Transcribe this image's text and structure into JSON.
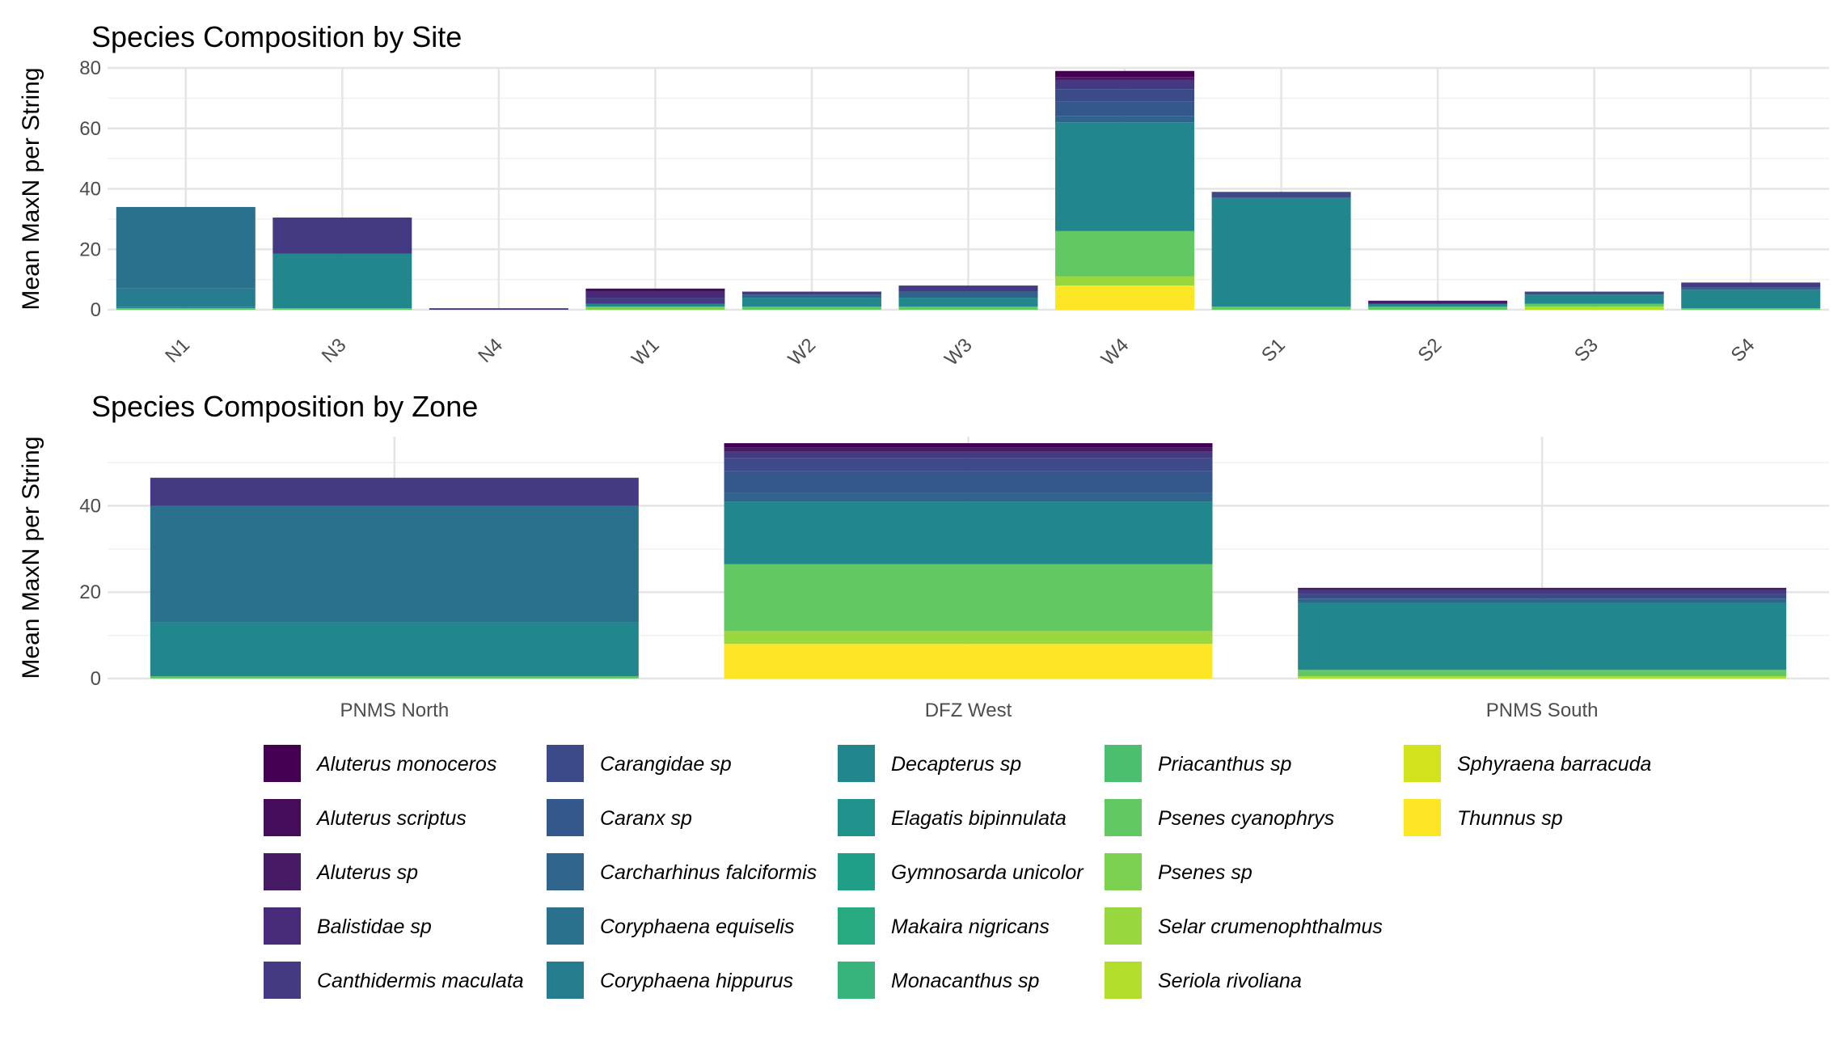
{
  "species": [
    {
      "name": "Aluterus monoceros",
      "color": "#440154"
    },
    {
      "name": "Aluterus scriptus",
      "color": "#450c5b"
    },
    {
      "name": "Aluterus sp",
      "color": "#471a66"
    },
    {
      "name": "Balistidae sp",
      "color": "#472a7a"
    },
    {
      "name": "Canthidermis maculata",
      "color": "#433a83"
    },
    {
      "name": "Carangidae sp",
      "color": "#3d4a89"
    },
    {
      "name": "Caranx sp",
      "color": "#35588c"
    },
    {
      "name": "Carcharhinus falciformis",
      "color": "#2f658d"
    },
    {
      "name": "Coryphaena equiselis",
      "color": "#2a718e"
    },
    {
      "name": "Coryphaena hippurus",
      "color": "#257c8e"
    },
    {
      "name": "Decapterus sp",
      "color": "#21878d"
    },
    {
      "name": "Elagatis bipinnulata",
      "color": "#1f938b"
    },
    {
      "name": "Gymnosarda unicolor",
      "color": "#1f9e88"
    },
    {
      "name": "Makaira nigricans",
      "color": "#27a982"
    },
    {
      "name": "Monacanthus sp",
      "color": "#37b47b"
    },
    {
      "name": "Priacanthus sp",
      "color": "#4bbf6f"
    },
    {
      "name": "Psenes cyanophrys",
      "color": "#62c862"
    },
    {
      "name": "Psenes sp",
      "color": "#7cd150"
    },
    {
      "name": "Selar crumenophthalmus",
      "color": "#98d83e"
    },
    {
      "name": "Seriola rivoliana",
      "color": "#b4de2c"
    },
    {
      "name": "Sphyraena barracuda",
      "color": "#d2e21b"
    },
    {
      "name": "Thunnus sp",
      "color": "#fde725"
    }
  ],
  "chart_data": [
    {
      "type": "bar",
      "stacked": true,
      "title": "Species Composition by Site",
      "ylabel": "Mean MaxN per String",
      "xlabel": "",
      "ylim": [
        0,
        80
      ],
      "yticks": [
        0,
        20,
        40,
        60,
        80
      ],
      "categories": [
        "N1",
        "N3",
        "N4",
        "W1",
        "W2",
        "W3",
        "W4",
        "S1",
        "S2",
        "S3",
        "S4"
      ],
      "grid": true,
      "legend": "bottom",
      "stacks": [
        {
          "category": "N1",
          "segments": [
            {
              "species": "Psenes cyanophrys",
              "value": 0.5
            },
            {
              "species": "Decapterus sp",
              "value": 0.5
            },
            {
              "species": "Coryphaena hippurus",
              "value": 6
            },
            {
              "species": "Coryphaena equiselis",
              "value": 27
            }
          ]
        },
        {
          "category": "N3",
          "segments": [
            {
              "species": "Psenes cyanophrys",
              "value": 0.5
            },
            {
              "species": "Decapterus sp",
              "value": 18
            },
            {
              "species": "Canthidermis maculata",
              "value": 12
            }
          ]
        },
        {
          "category": "N4",
          "segments": [
            {
              "species": "Canthidermis maculata",
              "value": 0.5
            }
          ]
        },
        {
          "category": "W1",
          "segments": [
            {
              "species": "Psenes sp",
              "value": 1
            },
            {
              "species": "Decapterus sp",
              "value": 1
            },
            {
              "species": "Canthidermis maculata",
              "value": 2
            },
            {
              "species": "Balistidae sp",
              "value": 2
            },
            {
              "species": "Aluterus scriptus",
              "value": 1
            }
          ]
        },
        {
          "category": "W2",
          "segments": [
            {
              "species": "Psenes cyanophrys",
              "value": 1
            },
            {
              "species": "Decapterus sp",
              "value": 3
            },
            {
              "species": "Carcharhinus falciformis",
              "value": 1
            },
            {
              "species": "Canthidermis maculata",
              "value": 1
            }
          ]
        },
        {
          "category": "W3",
          "segments": [
            {
              "species": "Psenes cyanophrys",
              "value": 1
            },
            {
              "species": "Decapterus sp",
              "value": 3
            },
            {
              "species": "Carcharhinus falciformis",
              "value": 2
            },
            {
              "species": "Canthidermis maculata",
              "value": 2
            }
          ]
        },
        {
          "category": "W4",
          "segments": [
            {
              "species": "Thunnus sp",
              "value": 8
            },
            {
              "species": "Selar crumenophthalmus",
              "value": 3
            },
            {
              "species": "Psenes cyanophrys",
              "value": 15
            },
            {
              "species": "Decapterus sp",
              "value": 36
            },
            {
              "species": "Carcharhinus falciformis",
              "value": 2
            },
            {
              "species": "Caranx sp",
              "value": 5
            },
            {
              "species": "Carangidae sp",
              "value": 4
            },
            {
              "species": "Canthidermis maculata",
              "value": 3
            },
            {
              "species": "Aluterus sp",
              "value": 1
            },
            {
              "species": "Aluterus monoceros",
              "value": 2
            }
          ]
        },
        {
          "category": "S1",
          "segments": [
            {
              "species": "Psenes cyanophrys",
              "value": 1
            },
            {
              "species": "Decapterus sp",
              "value": 36
            },
            {
              "species": "Carangidae sp",
              "value": 2
            }
          ]
        },
        {
          "category": "S2",
          "segments": [
            {
              "species": "Psenes cyanophrys",
              "value": 1
            },
            {
              "species": "Decapterus sp",
              "value": 1
            },
            {
              "species": "Aluterus sp",
              "value": 1
            }
          ]
        },
        {
          "category": "S3",
          "segments": [
            {
              "species": "Seriola rivoliana",
              "value": 1
            },
            {
              "species": "Psenes cyanophrys",
              "value": 1
            },
            {
              "species": "Decapterus sp",
              "value": 3
            },
            {
              "species": "Carangidae sp",
              "value": 1
            }
          ]
        },
        {
          "category": "S4",
          "segments": [
            {
              "species": "Psenes cyanophrys",
              "value": 0.5
            },
            {
              "species": "Decapterus sp",
              "value": 6
            },
            {
              "species": "Carcharhinus falciformis",
              "value": 1
            },
            {
              "species": "Canthidermis maculata",
              "value": 1.5
            }
          ]
        }
      ]
    },
    {
      "type": "bar",
      "stacked": true,
      "title": "Species Composition by Zone",
      "ylabel": "Mean MaxN per String",
      "xlabel": "",
      "ylim": [
        0,
        56
      ],
      "yticks": [
        0,
        20,
        40
      ],
      "categories": [
        "PNMS North",
        "DFZ West",
        "PNMS South"
      ],
      "grid": true,
      "legend": "bottom",
      "stacks": [
        {
          "category": "PNMS North",
          "segments": [
            {
              "species": "Psenes cyanophrys",
              "value": 0.5
            },
            {
              "species": "Decapterus sp",
              "value": 12.5
            },
            {
              "species": "Coryphaena equiselis",
              "value": 27
            },
            {
              "species": "Canthidermis maculata",
              "value": 6.5
            }
          ]
        },
        {
          "category": "DFZ West",
          "segments": [
            {
              "species": "Thunnus sp",
              "value": 8
            },
            {
              "species": "Selar crumenophthalmus",
              "value": 3
            },
            {
              "species": "Psenes cyanophrys",
              "value": 15.5
            },
            {
              "species": "Decapterus sp",
              "value": 14.5
            },
            {
              "species": "Carcharhinus falciformis",
              "value": 2
            },
            {
              "species": "Caranx sp",
              "value": 5
            },
            {
              "species": "Carangidae sp",
              "value": 3
            },
            {
              "species": "Canthidermis maculata",
              "value": 1.5
            },
            {
              "species": "Aluterus sp",
              "value": 1
            },
            {
              "species": "Aluterus monoceros",
              "value": 1
            }
          ]
        },
        {
          "category": "PNMS South",
          "segments": [
            {
              "species": "Seriola rivoliana",
              "value": 0.5
            },
            {
              "species": "Psenes cyanophrys",
              "value": 1.5
            },
            {
              "species": "Decapterus sp",
              "value": 15.5
            },
            {
              "species": "Carcharhinus falciformis",
              "value": 1
            },
            {
              "species": "Carangidae sp",
              "value": 1
            },
            {
              "species": "Canthidermis maculata",
              "value": 1
            },
            {
              "species": "Aluterus sp",
              "value": 0.5
            }
          ]
        }
      ]
    }
  ]
}
